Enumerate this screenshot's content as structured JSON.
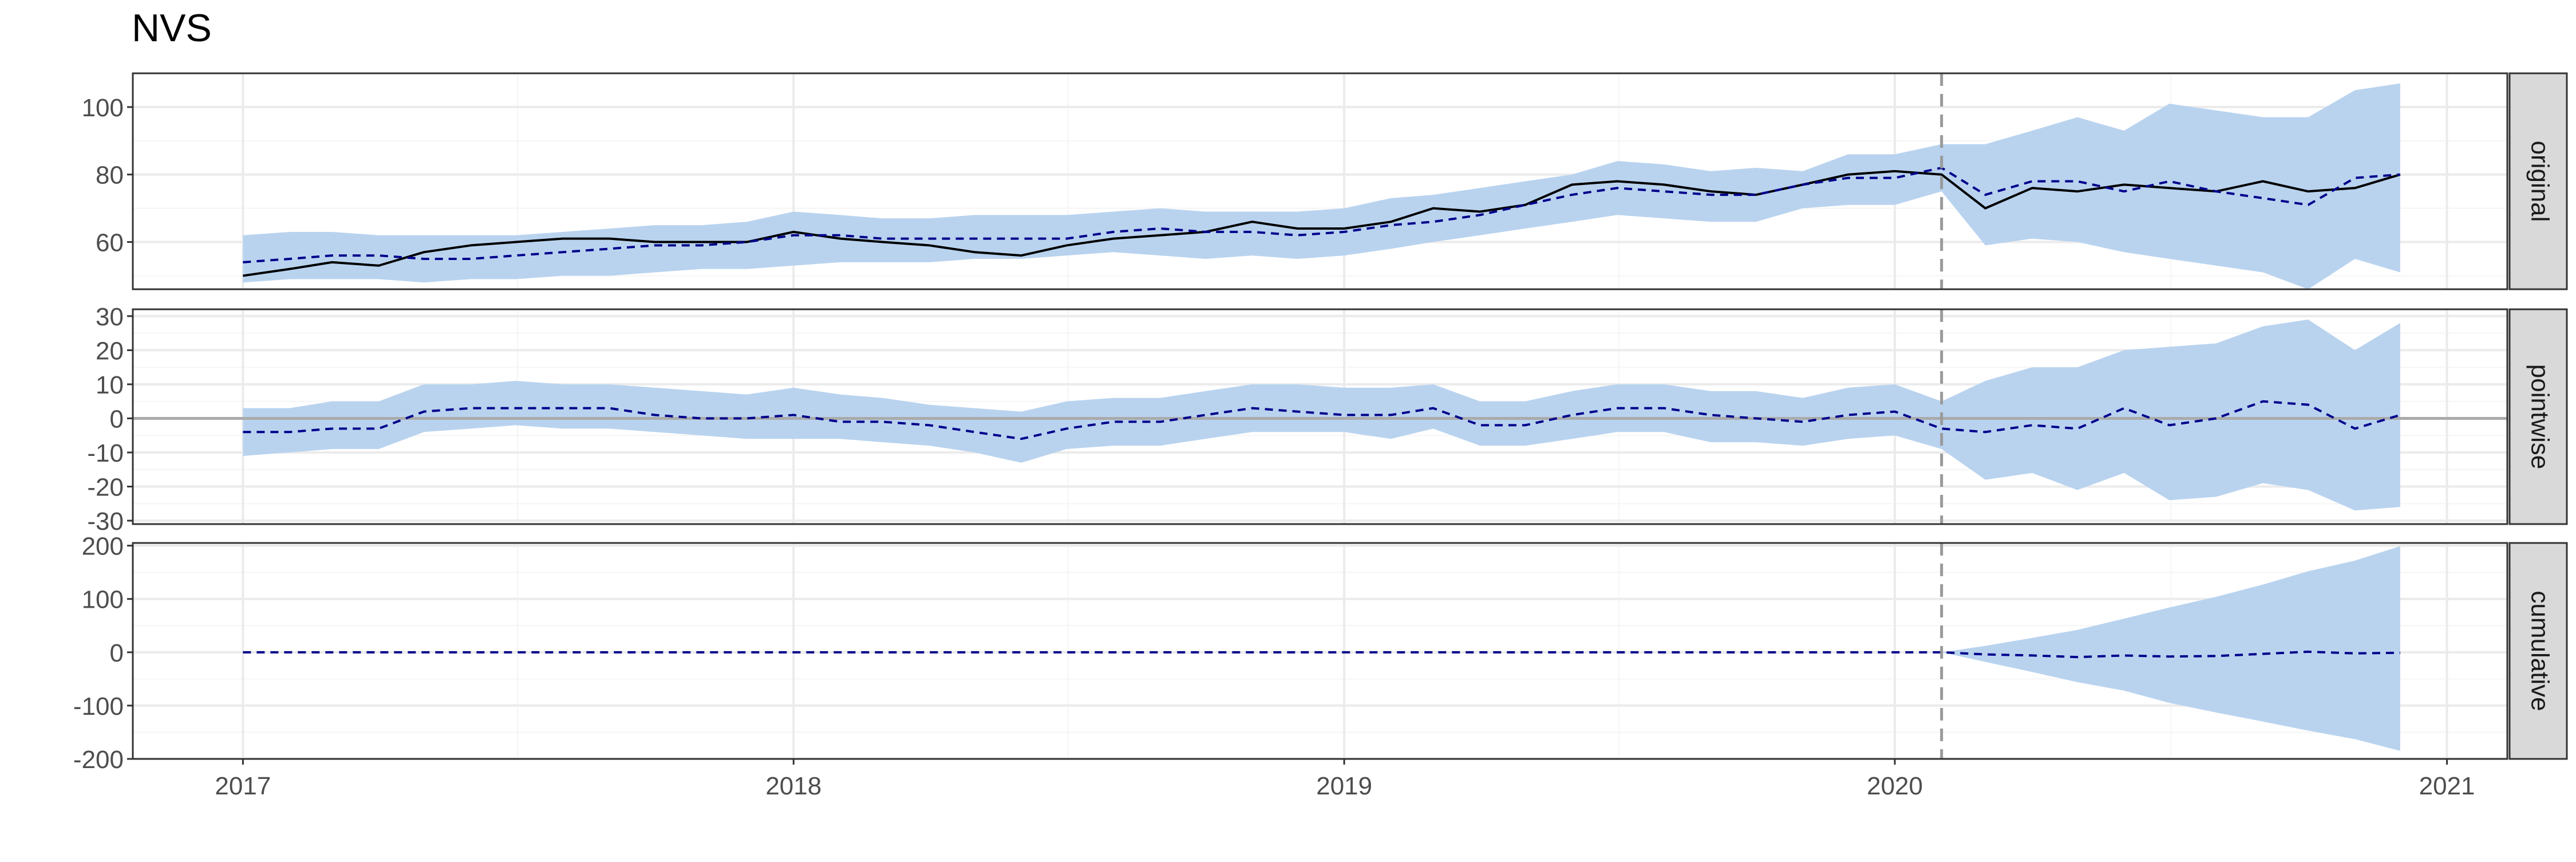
{
  "title": "NVS",
  "colors": {
    "band": "#b9d3ef",
    "actual": "#000000",
    "predicted": "#00008b",
    "zero_line": "#aaaaaa",
    "intervention_line": "#999999",
    "grid_major": "#ebebeb",
    "grid_minor": "#f5f5f5",
    "strip_fill": "#d9d9d9"
  },
  "chart_data": {
    "type": "line",
    "title": "NVS",
    "xlabel": "",
    "ylabel": "",
    "x_ticks": [
      "2017",
      "2018",
      "2019",
      "2020",
      "2021"
    ],
    "x_range": [
      "2016-10-20",
      "2021-02-10"
    ],
    "intervention_date": "2020-02-01",
    "grid": true,
    "legend": "none",
    "x": [
      "2017-01-01",
      "2017-02-01",
      "2017-03-01",
      "2017-04-01",
      "2017-05-01",
      "2017-06-01",
      "2017-07-01",
      "2017-08-01",
      "2017-09-01",
      "2017-10-01",
      "2017-11-01",
      "2017-12-01",
      "2018-01-01",
      "2018-02-01",
      "2018-03-01",
      "2018-04-01",
      "2018-05-01",
      "2018-06-01",
      "2018-07-01",
      "2018-08-01",
      "2018-09-01",
      "2018-10-01",
      "2018-11-01",
      "2018-12-01",
      "2019-01-01",
      "2019-02-01",
      "2019-03-01",
      "2019-04-01",
      "2019-05-01",
      "2019-06-01",
      "2019-07-01",
      "2019-08-01",
      "2019-09-01",
      "2019-10-01",
      "2019-11-01",
      "2019-12-01",
      "2020-01-01",
      "2020-02-01",
      "2020-03-01",
      "2020-04-01",
      "2020-05-01",
      "2020-06-01",
      "2020-07-01",
      "2020-08-01",
      "2020-09-01",
      "2020-10-01",
      "2020-11-01",
      "2020-12-01"
    ],
    "panels": [
      {
        "strip_label": "original",
        "ylim": [
          46,
          110
        ],
        "y_ticks": [
          60,
          80,
          100
        ],
        "actual": [
          50,
          52,
          54,
          53,
          57,
          59,
          60,
          61,
          61,
          60,
          60,
          60,
          63,
          61,
          60,
          59,
          57,
          56,
          59,
          61,
          62,
          63,
          66,
          64,
          64,
          66,
          70,
          69,
          71,
          77,
          78,
          77,
          75,
          74,
          77,
          80,
          81,
          80,
          70,
          76,
          75,
          77,
          76,
          75,
          78,
          75,
          76,
          80
        ],
        "predicted": [
          54,
          55,
          56,
          56,
          55,
          55,
          56,
          57,
          58,
          59,
          59,
          60,
          62,
          62,
          61,
          61,
          61,
          61,
          61,
          63,
          64,
          63,
          63,
          62,
          63,
          65,
          66,
          68,
          71,
          74,
          76,
          75,
          74,
          74,
          77,
          79,
          79,
          82,
          74,
          78,
          78,
          75,
          78,
          75,
          73,
          71,
          79,
          80
        ],
        "lower": [
          48,
          49,
          49,
          49,
          48,
          49,
          49,
          50,
          50,
          51,
          52,
          52,
          53,
          54,
          54,
          54,
          55,
          55,
          56,
          57,
          56,
          55,
          56,
          55,
          56,
          58,
          60,
          62,
          64,
          66,
          68,
          67,
          66,
          66,
          70,
          71,
          71,
          75,
          59,
          61,
          60,
          57,
          55,
          53,
          51,
          46,
          55,
          51
        ],
        "upper": [
          62,
          63,
          63,
          62,
          62,
          62,
          62,
          63,
          64,
          65,
          65,
          66,
          69,
          68,
          67,
          67,
          68,
          68,
          68,
          69,
          70,
          69,
          69,
          69,
          70,
          73,
          74,
          76,
          78,
          80,
          84,
          83,
          81,
          82,
          81,
          86,
          86,
          89,
          89,
          93,
          97,
          93,
          101,
          99,
          97,
          97,
          105,
          107
        ]
      },
      {
        "strip_label": "pointwise",
        "ylim": [
          -31,
          32
        ],
        "y_ticks": [
          -30,
          -20,
          -10,
          0,
          10,
          20,
          30
        ],
        "zero_line": true,
        "predicted": [
          -4,
          -4,
          -3,
          -3,
          2,
          3,
          3,
          3,
          3,
          1,
          0,
          0,
          1,
          -1,
          -1,
          -2,
          -4,
          -6,
          -3,
          -1,
          -1,
          1,
          3,
          2,
          1,
          1,
          3,
          -2,
          -2,
          1,
          3,
          3,
          1,
          0,
          -1,
          1,
          2,
          -3,
          -4,
          -2,
          -3,
          3,
          -2,
          0,
          5,
          4,
          -3,
          1
        ],
        "lower": [
          -11,
          -10,
          -9,
          -9,
          -4,
          -3,
          -2,
          -3,
          -3,
          -4,
          -5,
          -6,
          -6,
          -6,
          -7,
          -8,
          -10,
          -13,
          -9,
          -8,
          -8,
          -6,
          -4,
          -4,
          -4,
          -6,
          -3,
          -8,
          -8,
          -6,
          -4,
          -4,
          -7,
          -7,
          -8,
          -6,
          -5,
          -9,
          -18,
          -16,
          -21,
          -16,
          -24,
          -23,
          -19,
          -21,
          -27,
          -26
        ],
        "upper": [
          3,
          3,
          5,
          5,
          10,
          10,
          11,
          10,
          10,
          9,
          8,
          7,
          9,
          7,
          6,
          4,
          3,
          2,
          5,
          6,
          6,
          8,
          10,
          10,
          9,
          9,
          10,
          5,
          5,
          8,
          10,
          10,
          8,
          8,
          6,
          9,
          10,
          5,
          11,
          15,
          15,
          20,
          21,
          22,
          27,
          29,
          20,
          28
        ]
      },
      {
        "strip_label": "cumulative",
        "ylim": [
          -200,
          205
        ],
        "y_ticks": [
          -200,
          -100,
          0,
          100,
          200
        ],
        "zero_line": false,
        "predicted": [
          0,
          0,
          0,
          0,
          0,
          0,
          0,
          0,
          0,
          0,
          0,
          0,
          0,
          0,
          0,
          0,
          0,
          0,
          0,
          0,
          0,
          0,
          0,
          0,
          0,
          0,
          0,
          0,
          0,
          0,
          0,
          0,
          0,
          0,
          0,
          0,
          0,
          0,
          -4,
          -6,
          -9,
          -6,
          -8,
          -7,
          -3,
          1,
          -2,
          -1
        ],
        "lower": [
          0,
          0,
          0,
          0,
          0,
          0,
          0,
          0,
          0,
          0,
          0,
          0,
          0,
          0,
          0,
          0,
          0,
          0,
          0,
          0,
          0,
          0,
          0,
          0,
          0,
          0,
          0,
          0,
          0,
          0,
          0,
          0,
          0,
          0,
          0,
          0,
          0,
          0,
          -18,
          -37,
          -56,
          -72,
          -95,
          -113,
          -130,
          -147,
          -163,
          -185
        ],
        "upper": [
          0,
          0,
          0,
          0,
          0,
          0,
          0,
          0,
          0,
          0,
          0,
          0,
          0,
          0,
          0,
          0,
          0,
          0,
          0,
          0,
          0,
          0,
          0,
          0,
          0,
          0,
          0,
          0,
          0,
          0,
          0,
          0,
          0,
          0,
          0,
          0,
          0,
          0,
          12,
          27,
          42,
          63,
          84,
          104,
          127,
          152,
          172,
          199
        ]
      }
    ]
  }
}
